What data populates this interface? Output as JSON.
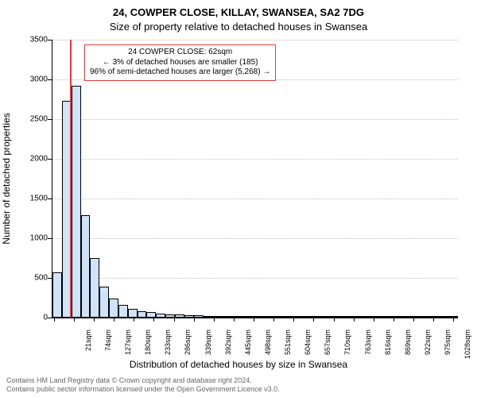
{
  "title_line1": "24, COWPER CLOSE, KILLAY, SWANSEA, SA2 7DG",
  "title_line2": "Size of property relative to detached houses in Swansea",
  "y_axis": {
    "label": "Number of detached properties",
    "min": 0,
    "max": 3500,
    "tick_step": 500,
    "ticks": [
      0,
      500,
      1000,
      1500,
      2000,
      2500,
      3000,
      3500
    ]
  },
  "x_axis": {
    "label": "Distribution of detached houses by size in Swansea",
    "unit_suffix": "sqm",
    "tick_start": 21,
    "tick_step": 53,
    "tick_count": 21
  },
  "chart": {
    "type": "histogram",
    "bar_fill": "#cfe3fb",
    "bar_stroke": "#000000",
    "grid_color": "#bfbfbf",
    "background": "#ffffff",
    "bin_start": 15,
    "bin_width": 25,
    "values": [
      570,
      2730,
      2920,
      1290,
      750,
      390,
      240,
      160,
      110,
      80,
      70,
      55,
      45,
      40,
      35,
      30,
      25,
      22,
      20,
      18,
      16,
      15,
      14,
      13,
      12,
      11,
      10,
      9,
      8,
      8,
      7,
      7,
      6,
      6,
      6,
      5,
      5,
      5,
      5,
      5,
      4,
      4,
      4
    ]
  },
  "marker": {
    "x_value": 62,
    "color": "#e23b3b",
    "box_lines": [
      "24 COWPER CLOSE: 62sqm",
      "← 3% of detached houses are smaller (185)",
      "96% of semi-detached houses are larger (5,268) →"
    ]
  },
  "footer": {
    "line1": "Contains HM Land Registry data © Crown copyright and database right 2024.",
    "line2": "Contains public sector information licensed under the Open Government Licence v3.0.",
    "color": "#666666"
  },
  "fonts": {
    "title_size_pt": 13,
    "axis_label_size_pt": 12,
    "tick_size_pt": 10,
    "xtick_size_pt": 9,
    "annot_size_pt": 10,
    "footer_size_pt": 9
  }
}
